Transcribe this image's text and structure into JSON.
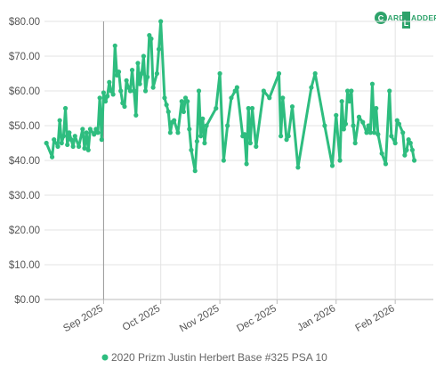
{
  "logo": {
    "text_left": "ARD",
    "text_right": "ADDER",
    "letter_left": "C",
    "letter_right": "L"
  },
  "colors": {
    "series": "#2ebd7f",
    "grid": "#e3e3e3",
    "axis": "#bbbbbb",
    "logo": "#2ea36b"
  },
  "chart_data": {
    "type": "line",
    "title": "",
    "xlabel": "",
    "ylabel": "",
    "ylim": [
      0,
      80
    ],
    "y_ticks": [
      0,
      10,
      20,
      30,
      40,
      50,
      60,
      70,
      80
    ],
    "y_tick_labels": [
      "$0.00",
      "$10.00",
      "$20.00",
      "$30.00",
      "$40.00",
      "$50.00",
      "$60.00",
      "$70.00",
      "$80.00"
    ],
    "x_range": [
      "2025-08-01",
      "2026-02-21"
    ],
    "x_ticks": [
      "2025-09-01",
      "2025-10-01",
      "2025-11-01",
      "2025-12-01",
      "2026-01-01",
      "2026-02-01"
    ],
    "x_tick_labels": [
      "Sep 2025",
      "Oct 2025",
      "Nov 2025",
      "Dec 2025",
      "Jan 2026",
      "Feb 2026"
    ],
    "crosshair_x": "2025-09-01",
    "legend_position": "bottom-center",
    "grid": true,
    "series": [
      {
        "name": "2020 Prizm Justin Herbert Base #325 PSA 10",
        "points": [
          [
            "2025-08-02",
            45.0
          ],
          [
            "2025-08-05",
            41.0
          ],
          [
            "2025-08-06",
            46.0
          ],
          [
            "2025-08-08",
            44.0
          ],
          [
            "2025-08-09",
            51.5
          ],
          [
            "2025-08-10",
            45.0
          ],
          [
            "2025-08-11",
            47.0
          ],
          [
            "2025-08-12",
            55.0
          ],
          [
            "2025-08-13",
            44.5
          ],
          [
            "2025-08-14",
            48.0
          ],
          [
            "2025-08-15",
            46.0
          ],
          [
            "2025-08-16",
            44.0
          ],
          [
            "2025-08-17",
            47.0
          ],
          [
            "2025-08-19",
            44.0
          ],
          [
            "2025-08-21",
            49.0
          ],
          [
            "2025-08-22",
            43.5
          ],
          [
            "2025-08-23",
            48.0
          ],
          [
            "2025-08-24",
            43.0
          ],
          [
            "2025-08-25",
            49.0
          ],
          [
            "2025-08-27",
            47.5
          ],
          [
            "2025-08-28",
            49.0
          ],
          [
            "2025-08-29",
            48.0
          ],
          [
            "2025-08-30",
            58.0
          ],
          [
            "2025-08-31",
            46.0
          ],
          [
            "2025-09-01",
            59.5
          ],
          [
            "2025-09-02",
            57.0
          ],
          [
            "2025-09-03",
            58.5
          ],
          [
            "2025-09-04",
            62.5
          ],
          [
            "2025-09-05",
            60.0
          ],
          [
            "2025-09-06",
            59.0
          ],
          [
            "2025-09-07",
            73.0
          ],
          [
            "2025-09-08",
            64.5
          ],
          [
            "2025-09-09",
            65.5
          ],
          [
            "2025-09-10",
            60.0
          ],
          [
            "2025-09-11",
            56.5
          ],
          [
            "2025-09-12",
            55.5
          ],
          [
            "2025-09-13",
            63.0
          ],
          [
            "2025-09-14",
            61.0
          ],
          [
            "2025-09-15",
            60.0
          ],
          [
            "2025-09-16",
            66.0
          ],
          [
            "2025-09-17",
            60.0
          ],
          [
            "2025-09-18",
            53.0
          ],
          [
            "2025-09-19",
            68.0
          ],
          [
            "2025-09-20",
            62.0
          ],
          [
            "2025-09-21",
            65.0
          ],
          [
            "2025-09-22",
            70.0
          ],
          [
            "2025-09-23",
            60.0
          ],
          [
            "2025-09-24",
            64.0
          ],
          [
            "2025-09-25",
            76.0
          ],
          [
            "2025-09-26",
            75.0
          ],
          [
            "2025-09-27",
            61.0
          ],
          [
            "2025-09-29",
            65.0
          ],
          [
            "2025-09-30",
            72.0
          ],
          [
            "2025-10-01",
            80.0
          ],
          [
            "2025-10-03",
            58.0
          ],
          [
            "2025-10-04",
            56.0
          ],
          [
            "2025-10-05",
            54.0
          ],
          [
            "2025-10-06",
            48.0
          ],
          [
            "2025-10-07",
            51.0
          ],
          [
            "2025-10-08",
            51.5
          ],
          [
            "2025-10-10",
            48.0
          ],
          [
            "2025-10-12",
            57.0
          ],
          [
            "2025-10-13",
            54.0
          ],
          [
            "2025-10-14",
            58.0
          ],
          [
            "2025-10-15",
            57.0
          ],
          [
            "2025-10-16",
            49.0
          ],
          [
            "2025-10-17",
            43.0
          ],
          [
            "2025-10-19",
            37.0
          ],
          [
            "2025-10-20",
            45.5
          ],
          [
            "2025-10-21",
            60.0
          ],
          [
            "2025-10-22",
            47.0
          ],
          [
            "2025-10-23",
            52.0
          ],
          [
            "2025-10-24",
            45.0
          ],
          [
            "2025-10-25",
            50.0
          ],
          [
            "2025-10-30",
            55.0
          ],
          [
            "2025-11-01",
            65.0
          ],
          [
            "2025-11-03",
            40.0
          ],
          [
            "2025-11-05",
            50.0
          ],
          [
            "2025-11-07",
            58.0
          ],
          [
            "2025-11-09",
            60.0
          ],
          [
            "2025-11-10",
            61.0
          ],
          [
            "2025-11-13",
            47.0
          ],
          [
            "2025-11-14",
            47.5
          ],
          [
            "2025-11-15",
            39.0
          ],
          [
            "2025-11-16",
            55.0
          ],
          [
            "2025-11-17",
            45.0
          ],
          [
            "2025-11-18",
            55.0
          ],
          [
            "2025-11-20",
            44.0
          ],
          [
            "2025-11-24",
            60.0
          ],
          [
            "2025-11-27",
            58.0
          ],
          [
            "2025-12-02",
            65.0
          ],
          [
            "2025-12-03",
            47.0
          ],
          [
            "2025-12-04",
            58.0
          ],
          [
            "2025-12-06",
            46.0
          ],
          [
            "2025-12-07",
            47.0
          ],
          [
            "2025-12-09",
            55.5
          ],
          [
            "2025-12-12",
            38.0
          ],
          [
            "2025-12-19",
            61.0
          ],
          [
            "2025-12-21",
            65.0
          ],
          [
            "2025-12-26",
            50.0
          ],
          [
            "2025-12-30",
            38.5
          ],
          [
            "2026-01-01",
            53.0
          ],
          [
            "2026-01-03",
            40.0
          ],
          [
            "2026-01-04",
            57.0
          ],
          [
            "2026-01-05",
            49.0
          ],
          [
            "2026-01-06",
            50.5
          ],
          [
            "2026-01-07",
            60.0
          ],
          [
            "2026-01-08",
            57.0
          ],
          [
            "2026-01-09",
            60.0
          ],
          [
            "2026-01-10",
            50.0
          ],
          [
            "2026-01-11",
            45.0
          ],
          [
            "2026-01-13",
            52.5
          ],
          [
            "2026-01-15",
            51.0
          ],
          [
            "2026-01-17",
            48.0
          ],
          [
            "2026-01-18",
            50.0
          ],
          [
            "2026-01-19",
            48.0
          ],
          [
            "2026-01-20",
            62.0
          ],
          [
            "2026-01-21",
            48.0
          ],
          [
            "2026-01-22",
            55.0
          ],
          [
            "2026-01-23",
            47.5
          ],
          [
            "2026-01-25",
            42.0
          ],
          [
            "2026-01-27",
            39.0
          ],
          [
            "2026-01-29",
            60.0
          ],
          [
            "2026-01-30",
            47.0
          ],
          [
            "2026-02-01",
            45.0
          ],
          [
            "2026-02-02",
            51.5
          ],
          [
            "2026-02-03",
            50.5
          ],
          [
            "2026-02-05",
            48.0
          ],
          [
            "2026-02-06",
            41.5
          ],
          [
            "2026-02-07",
            43.0
          ],
          [
            "2026-02-08",
            46.0
          ],
          [
            "2026-02-09",
            45.0
          ],
          [
            "2026-02-10",
            43.0
          ],
          [
            "2026-02-11",
            40.0
          ]
        ]
      }
    ]
  }
}
